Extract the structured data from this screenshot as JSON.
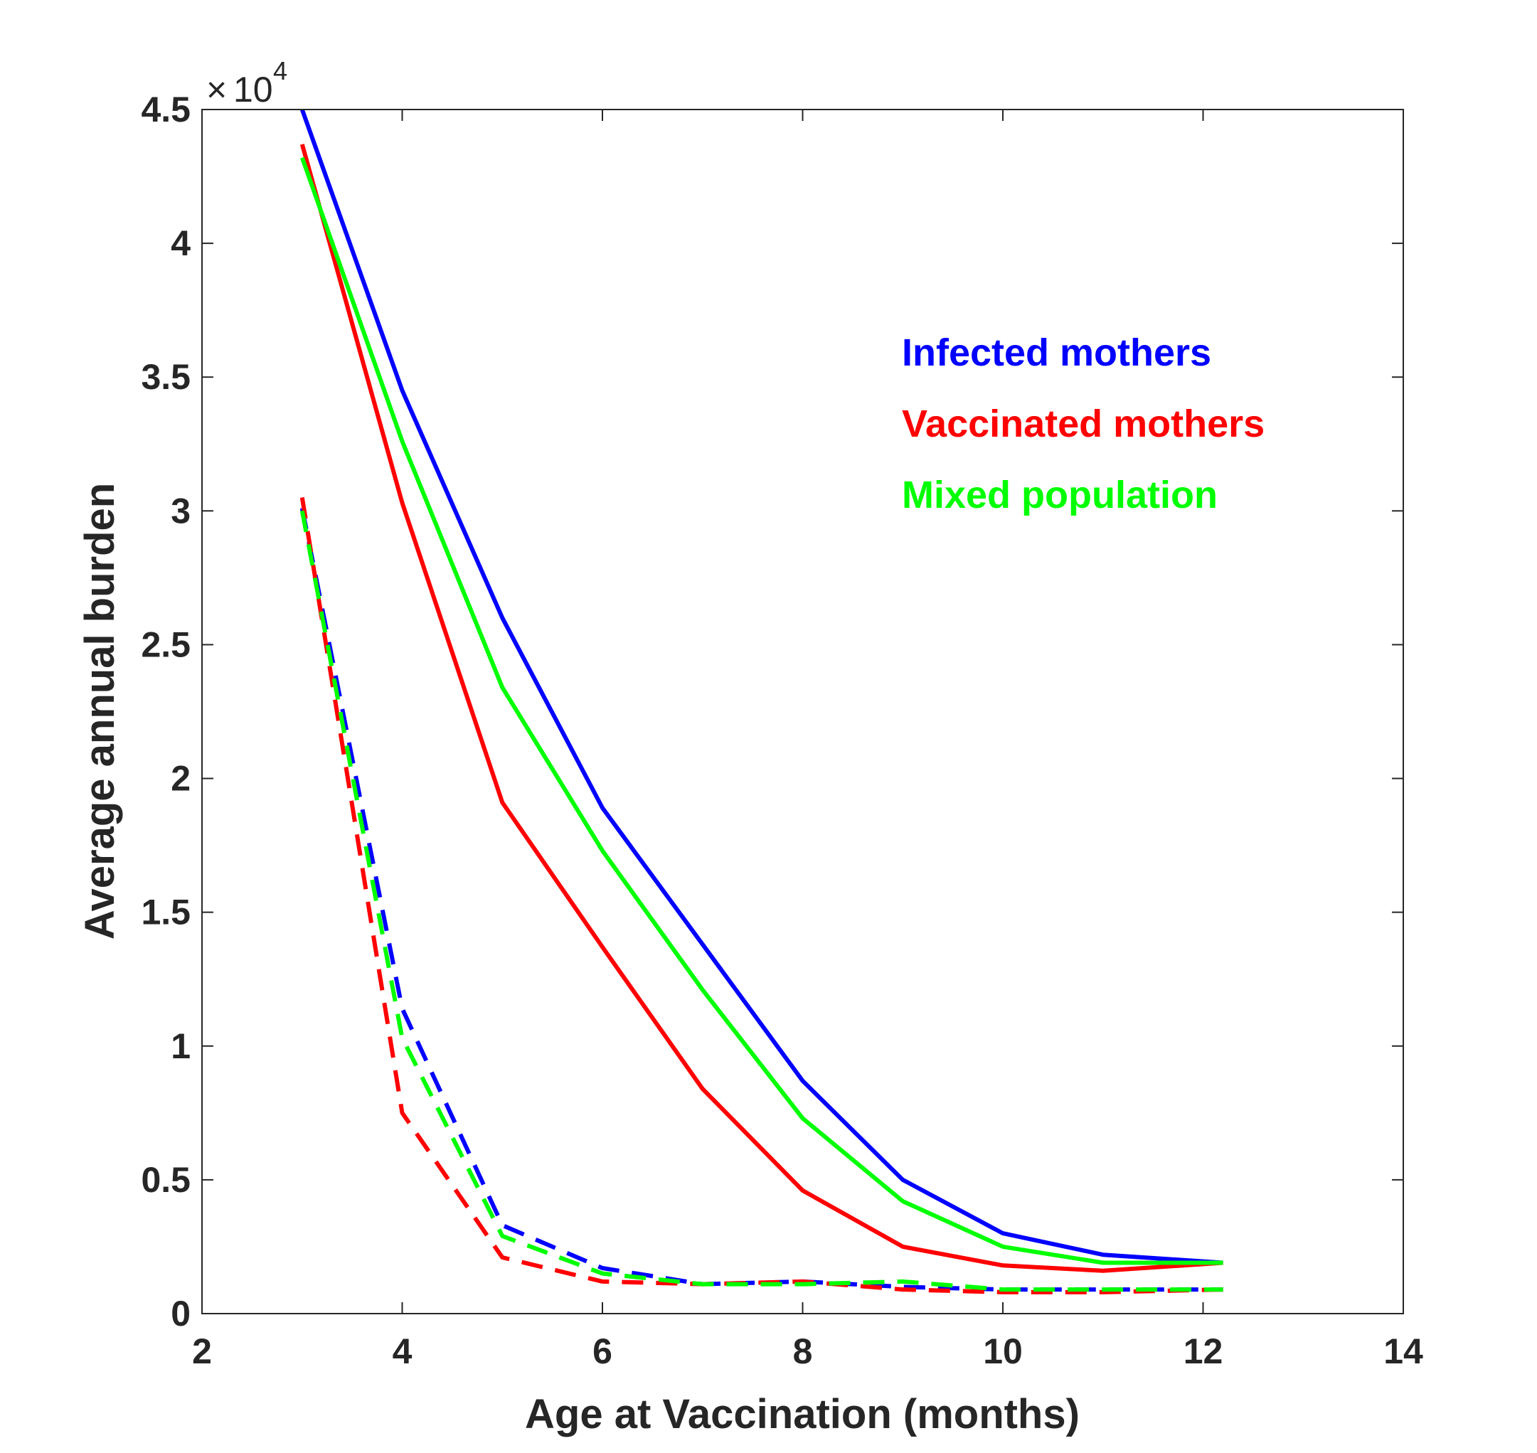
{
  "chart_data": {
    "type": "line",
    "xlabel": "Age at Vaccination (months)",
    "ylabel": "Average annual burden",
    "xlim": [
      2,
      14
    ],
    "ylim": [
      0,
      45000
    ],
    "x_ticks": [
      2,
      4,
      6,
      8,
      10,
      12,
      14
    ],
    "y_ticks": [
      0,
      5000,
      10000,
      15000,
      20000,
      25000,
      30000,
      35000,
      40000,
      45000
    ],
    "y_tick_labels": [
      "0",
      "0.5",
      "1",
      "1.5",
      "2",
      "2.5",
      "3",
      "3.5",
      "4",
      "4.5"
    ],
    "y_exponent": {
      "base": "10",
      "power": "4"
    },
    "grid": false,
    "legend_position": "top-right",
    "legend": [
      {
        "label": "Infected mothers",
        "color": "#0000ff"
      },
      {
        "label": "Vaccinated mothers",
        "color": "#ff0000"
      },
      {
        "label": "Mixed population",
        "color": "#00ff00"
      }
    ],
    "series": [
      {
        "group": "Infected mothers",
        "style": "solid",
        "color": "#0000ff",
        "x": [
          3,
          4,
          5,
          6,
          7,
          8,
          9,
          10,
          11,
          12.2
        ],
        "y": [
          45000,
          34500,
          26000,
          18900,
          13800,
          8700,
          5000,
          3000,
          2200,
          1900
        ]
      },
      {
        "group": "Vaccinated mothers",
        "style": "solid",
        "color": "#ff0000",
        "x": [
          3,
          4,
          5,
          6,
          7,
          8,
          9,
          10,
          11,
          12.2
        ],
        "y": [
          43700,
          30300,
          19100,
          13700,
          8400,
          4600,
          2500,
          1800,
          1600,
          1900
        ]
      },
      {
        "group": "Mixed population",
        "style": "solid",
        "color": "#00ff00",
        "x": [
          3,
          4,
          5,
          6,
          7,
          8,
          9,
          10,
          11,
          12.2
        ],
        "y": [
          43200,
          32600,
          23400,
          17300,
          12100,
          7300,
          4200,
          2500,
          1900,
          1900
        ]
      },
      {
        "group": "Infected mothers",
        "style": "dashed",
        "color": "#0000ff",
        "x": [
          3,
          4,
          5,
          6,
          7,
          8,
          9,
          10,
          11,
          12.2
        ],
        "y": [
          30100,
          11400,
          3300,
          1700,
          1100,
          1200,
          1000,
          900,
          900,
          900
        ]
      },
      {
        "group": "Vaccinated mothers",
        "style": "dashed",
        "color": "#ff0000",
        "x": [
          3,
          4,
          5,
          6,
          7,
          8,
          9,
          10,
          11,
          12.2
        ],
        "y": [
          30500,
          7500,
          2100,
          1200,
          1100,
          1200,
          900,
          800,
          800,
          900
        ]
      },
      {
        "group": "Mixed population",
        "style": "dashed",
        "color": "#00ff00",
        "x": [
          3,
          4,
          5,
          6,
          7,
          8,
          9,
          10,
          11,
          12.2
        ],
        "y": [
          30000,
          10300,
          2900,
          1500,
          1100,
          1100,
          1200,
          900,
          900,
          900
        ]
      }
    ]
  }
}
